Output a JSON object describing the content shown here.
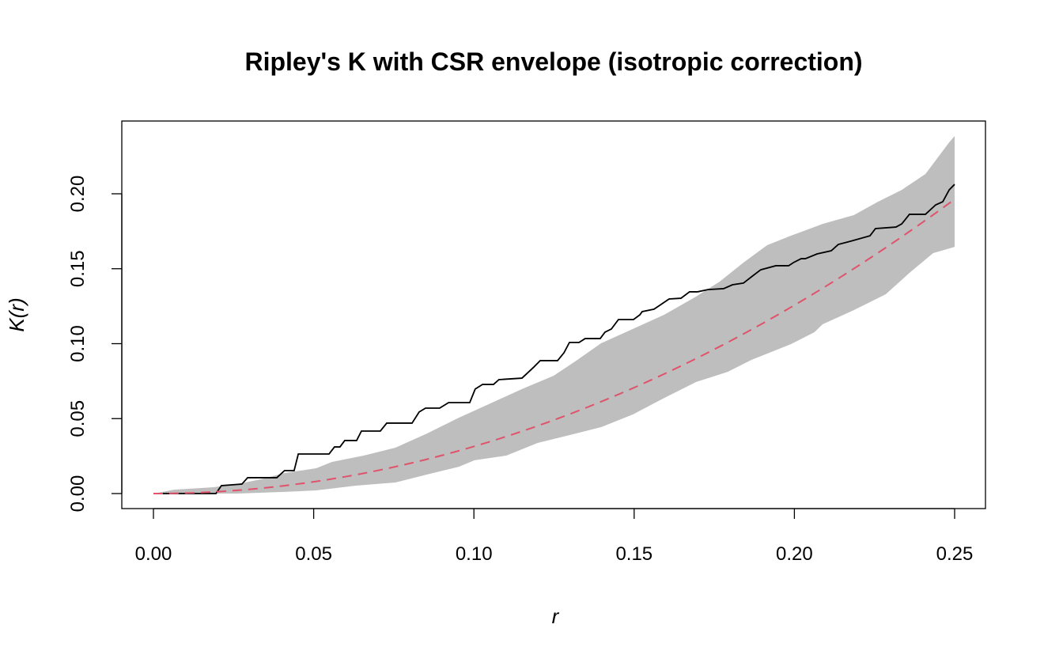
{
  "chart_data": {
    "type": "line",
    "title": "Ripley's K with CSR envelope (isotropic correction)",
    "xlabel": "r",
    "ylabel": "K(r)",
    "xlim": [
      0,
      0.25
    ],
    "ylim": [
      0,
      0.24
    ],
    "x_ticks": [
      "0.00",
      "0.05",
      "0.10",
      "0.15",
      "0.20",
      "0.25"
    ],
    "y_ticks": [
      "0.00",
      "0.05",
      "0.10",
      "0.15",
      "0.20"
    ],
    "grid": false,
    "legend": "none",
    "colors": {
      "observed": "#000000",
      "theoretical": "#DF536B",
      "envelope": "#BEBEBE"
    },
    "observed": {
      "style": "solid step",
      "r": [
        0,
        0.0195,
        0.0212,
        0.0276,
        0.0294,
        0.0385,
        0.0409,
        0.0439,
        0.0452,
        0.0548,
        0.0565,
        0.0582,
        0.0597,
        0.0634,
        0.0649,
        0.0708,
        0.0728,
        0.0807,
        0.0829,
        0.0849,
        0.0893,
        0.0921,
        0.0987,
        0.1004,
        0.1027,
        0.1061,
        0.1078,
        0.115,
        0.1187,
        0.1207,
        0.1261,
        0.1281,
        0.1298,
        0.1328,
        0.1347,
        0.1394,
        0.1409,
        0.1429,
        0.1451,
        0.1498,
        0.1518,
        0.1525,
        0.1562,
        0.1609,
        0.1646,
        0.1673,
        0.1698,
        0.173,
        0.1779,
        0.1807,
        0.1841,
        0.1866,
        0.1895,
        0.1942,
        0.1982,
        0.1997,
        0.2021,
        0.2034,
        0.2071,
        0.2115,
        0.2137,
        0.2174,
        0.2236,
        0.2253,
        0.2317,
        0.2335,
        0.2359,
        0.2409,
        0.2441,
        0.2463,
        0.2483,
        0.25
      ],
      "K": [
        0,
        0,
        0.0053,
        0.0063,
        0.0106,
        0.0106,
        0.0153,
        0.0153,
        0.0264,
        0.0264,
        0.0311,
        0.0311,
        0.0354,
        0.0354,
        0.0417,
        0.0417,
        0.047,
        0.047,
        0.0544,
        0.057,
        0.057,
        0.0607,
        0.0607,
        0.0697,
        0.0728,
        0.0728,
        0.076,
        0.077,
        0.0844,
        0.0887,
        0.0887,
        0.0939,
        0.1008,
        0.1008,
        0.1034,
        0.1034,
        0.1077,
        0.1098,
        0.1161,
        0.1161,
        0.1193,
        0.1214,
        0.123,
        0.1298,
        0.1303,
        0.1346,
        0.1346,
        0.1361,
        0.1367,
        0.1393,
        0.1404,
        0.1446,
        0.1493,
        0.152,
        0.152,
        0.1541,
        0.1567,
        0.1567,
        0.1599,
        0.162,
        0.1662,
        0.1683,
        0.172,
        0.1768,
        0.1778,
        0.1799,
        0.1863,
        0.1863,
        0.1926,
        0.1947,
        0.2026,
        0.2063
      ]
    },
    "theoretical": {
      "style": "dashed",
      "formula": "pi r^2"
    },
    "envelope": {
      "upper": {
        "r": [
          0,
          0.0064,
          0.0188,
          0.0261,
          0.0335,
          0.0409,
          0.0508,
          0.0557,
          0.0656,
          0.0755,
          0.0854,
          0.0953,
          0.1051,
          0.115,
          0.1249,
          0.1323,
          0.1397,
          0.1496,
          0.1594,
          0.1693,
          0.1767,
          0.1841,
          0.1915,
          0.1989,
          0.2088,
          0.2186,
          0.2261,
          0.2335,
          0.2409,
          0.2483,
          0.25
        ],
        "K": [
          0,
          0.0026,
          0.0042,
          0.0063,
          0.0095,
          0.0137,
          0.0169,
          0.0211,
          0.0253,
          0.0306,
          0.0401,
          0.0506,
          0.0601,
          0.0697,
          0.0786,
          0.0892,
          0.1003,
          0.1098,
          0.1193,
          0.1314,
          0.1414,
          0.1541,
          0.1657,
          0.172,
          0.1799,
          0.1858,
          0.1947,
          0.2026,
          0.2132,
          0.2343,
          0.2385
        ]
      },
      "lower": {
        "r": [
          0,
          0.0262,
          0.0409,
          0.0508,
          0.0632,
          0.0755,
          0.0854,
          0.0953,
          0.1002,
          0.1101,
          0.1199,
          0.1298,
          0.1397,
          0.1496,
          0.1594,
          0.1693,
          0.1792,
          0.1866,
          0.1989,
          0.2063,
          0.2088,
          0.2186,
          0.2285,
          0.2359,
          0.2433,
          0.25
        ],
        "K": [
          0,
          0,
          0.0011,
          0.0021,
          0.0053,
          0.0074,
          0.0127,
          0.0179,
          0.0222,
          0.0253,
          0.0338,
          0.039,
          0.0443,
          0.0528,
          0.0638,
          0.0744,
          0.0812,
          0.0892,
          0.0997,
          0.1077,
          0.1129,
          0.1224,
          0.133,
          0.1472,
          0.1604,
          0.1646
        ]
      }
    }
  }
}
